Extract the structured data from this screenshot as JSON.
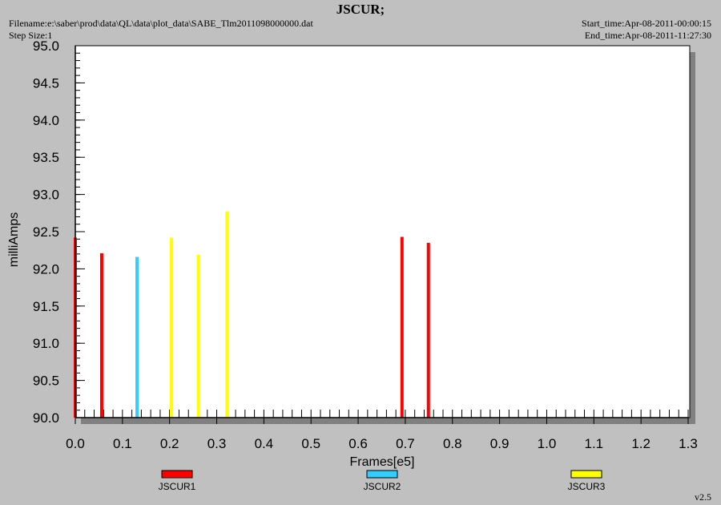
{
  "header": {
    "title": "JSCUR;",
    "filename": "Filename:e:\\saber\\prod\\data\\QL\\data\\plot_data\\SABE_Tlm2011098000000.dat",
    "step_size": "Step Size:1",
    "start_time": "Start_time:Apr-08-2011-00:00:15",
    "end_time": "End_time:Apr-08-2011-11:27:30"
  },
  "footer": {
    "version": "v2.5"
  },
  "chart_data": {
    "type": "bar",
    "title": "JSCUR;",
    "xlabel": "Frames[e5]",
    "ylabel": "milliAmps",
    "xlim": [
      0.0,
      1.3
    ],
    "ylim": [
      90.0,
      95.0
    ],
    "xticks": [
      "0.0",
      "0.1",
      "0.2",
      "0.3",
      "0.4",
      "0.5",
      "0.6",
      "0.7",
      "0.8",
      "0.9",
      "1.0",
      "1.1",
      "1.2",
      "1.3"
    ],
    "yticks": [
      "90.0",
      "90.5",
      "91.0",
      "91.5",
      "92.0",
      "92.5",
      "93.0",
      "93.5",
      "94.0",
      "94.5",
      "95.0"
    ],
    "legend_position": "bottom",
    "series": [
      {
        "name": "JSCUR1",
        "color": "#ff0000",
        "points": [
          [
            0.0,
            92.42
          ],
          [
            0.056,
            92.21
          ],
          [
            0.693,
            92.43
          ],
          [
            0.749,
            92.35
          ]
        ]
      },
      {
        "name": "JSCUR2",
        "color": "#33ccff",
        "points": [
          [
            0.131,
            92.16
          ]
        ]
      },
      {
        "name": "JSCUR3",
        "color": "#ffff00",
        "points": [
          [
            0.204,
            92.42
          ],
          [
            0.261,
            92.19
          ],
          [
            0.322,
            92.77
          ]
        ]
      }
    ]
  }
}
